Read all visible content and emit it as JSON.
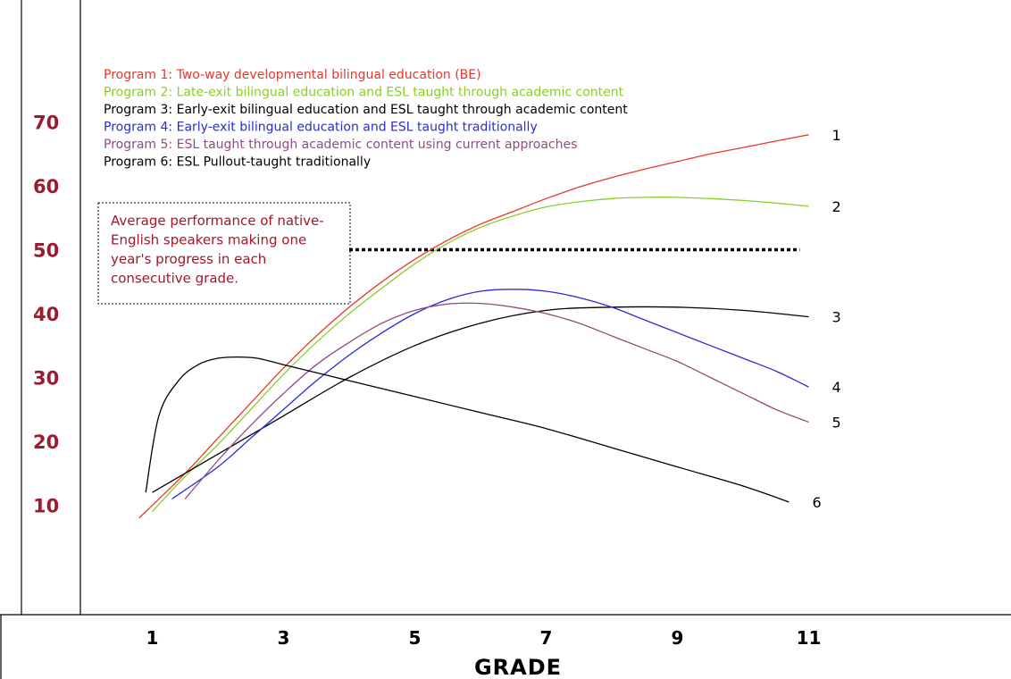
{
  "chart_data": {
    "type": "line",
    "xlabel": "GRADE",
    "ylabel": "",
    "x_ticks": [
      "1",
      "3",
      "5",
      "7",
      "9",
      "11"
    ],
    "y_ticks": [
      "10",
      "20",
      "30",
      "40",
      "50",
      "60",
      "70"
    ],
    "xlim": [
      0,
      13
    ],
    "ylim": [
      0,
      80
    ],
    "legend_position": "top-left",
    "legend": [
      {
        "text": "Program 1: Two-way developmental bilingual education (BE)",
        "color": "#e8382a"
      },
      {
        "text": "Program 2: Late-exit bilingual education and ESL taught through academic content",
        "color": "#8ccc2a"
      },
      {
        "text": "Program 3: Early-exit bilingual education and ESL taught through academic content",
        "color": "#000000"
      },
      {
        "text": "Program 4: Early-exit bilingual education and ESL taught traditionally",
        "color": "#2b2bd6"
      },
      {
        "text": "Program 5: ESL taught through academic content using current approaches",
        "color": "#8e4d7d"
      },
      {
        "text": "Program 6: ESL Pullout-taught traditionally",
        "color": "#000000"
      }
    ],
    "annotation": {
      "lines": [
        "Average performance of native-",
        "English speakers making one",
        "year's progress in each",
        "consecutive grade."
      ],
      "reference_value": 50,
      "reference_x_range": [
        4,
        11
      ]
    },
    "series": [
      {
        "end_label": "1",
        "color": "#e8382a",
        "x": [
          0.8,
          1.5,
          2,
          2.5,
          3,
          3.5,
          4,
          4.5,
          5,
          5.5,
          6,
          6.5,
          7,
          7.5,
          8,
          8.5,
          9,
          9.5,
          10,
          10.5,
          11
        ],
        "y": [
          8,
          15,
          20.5,
          26,
          31.5,
          36.5,
          41,
          45,
          48.5,
          51.5,
          54,
          56,
          58,
          59.8,
          61.3,
          62.6,
          63.8,
          65,
          66,
          67,
          68
        ]
      },
      {
        "end_label": "2",
        "color": "#8ccc2a",
        "x": [
          1,
          1.5,
          2,
          2.5,
          3,
          3.5,
          4,
          4.5,
          5,
          5.5,
          6,
          6.5,
          7,
          7.5,
          8,
          8.5,
          9,
          9.5,
          10,
          10.5,
          11
        ],
        "y": [
          9,
          14.5,
          19.5,
          25,
          30.5,
          35.5,
          40,
          44,
          47.8,
          51,
          53.5,
          55.3,
          56.7,
          57.5,
          58,
          58.2,
          58.2,
          58,
          57.7,
          57.3,
          56.8
        ]
      },
      {
        "end_label": "3",
        "color": "#000000",
        "x": [
          1,
          2,
          3,
          4,
          5,
          6,
          7,
          8,
          9,
          10,
          11
        ],
        "y": [
          12,
          18,
          24,
          30,
          35,
          38.5,
          40.5,
          41,
          41,
          40.5,
          39.5
        ]
      },
      {
        "end_label": "4",
        "color": "#2b2bd6",
        "x": [
          1.3,
          2,
          2.5,
          3,
          3.5,
          4,
          4.5,
          5,
          5.5,
          6,
          6.5,
          7,
          7.5,
          8,
          8.5,
          9,
          9.5,
          10,
          10.5,
          11
        ],
        "y": [
          11,
          16,
          20.5,
          25,
          29.5,
          33.5,
          37,
          40,
          42.2,
          43.5,
          43.8,
          43.5,
          42.5,
          41,
          39,
          37,
          35,
          33,
          31,
          28.5
        ]
      },
      {
        "end_label": "5",
        "color": "#8e4d7d",
        "x": [
          1.5,
          2,
          2.5,
          3,
          3.5,
          4,
          4.5,
          5,
          5.5,
          6,
          6.5,
          7,
          7.5,
          8,
          8.5,
          9,
          9.5,
          10,
          10.5,
          11
        ],
        "y": [
          11,
          17,
          22.5,
          27.5,
          32,
          35.5,
          38.5,
          40.5,
          41.5,
          41.6,
          41,
          40,
          38.5,
          36.5,
          34.5,
          32.5,
          30,
          27.5,
          25,
          23
        ]
      },
      {
        "end_label": "6",
        "color": "#000000",
        "x": [
          0.9,
          1.1,
          1.4,
          1.7,
          2,
          2.3,
          2.6,
          3,
          4,
          5,
          6,
          7,
          8,
          9,
          10,
          10.7
        ],
        "y": [
          12,
          24,
          29.5,
          32,
          33,
          33.2,
          33,
          32,
          29.5,
          27,
          24.5,
          22,
          19,
          16,
          13,
          10.5
        ]
      }
    ]
  }
}
